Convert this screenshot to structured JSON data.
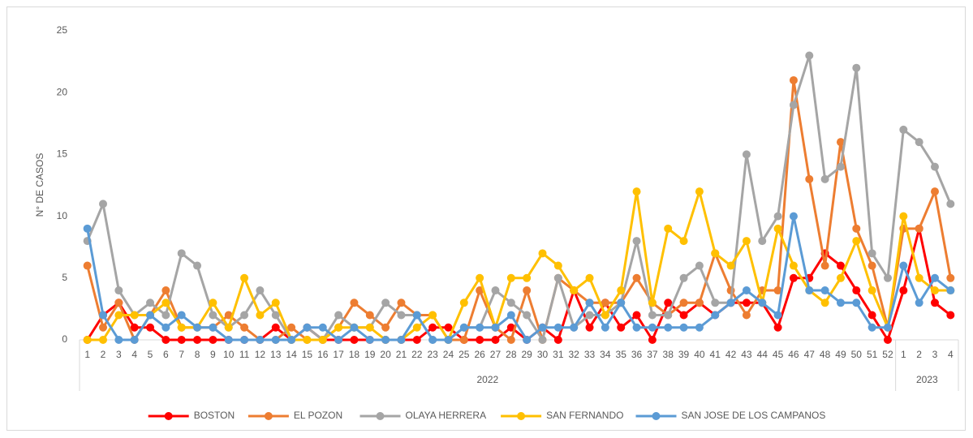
{
  "chart_data": {
    "type": "line",
    "y_label": "N° DE CASOS",
    "groups": [
      {
        "name": "2022",
        "categories": [
          1,
          2,
          3,
          4,
          5,
          6,
          7,
          8,
          9,
          10,
          11,
          12,
          13,
          14,
          15,
          16,
          17,
          18,
          19,
          20,
          21,
          22,
          23,
          24,
          25,
          26,
          27,
          28,
          29,
          30,
          31,
          32,
          33,
          34,
          35,
          36,
          37,
          38,
          39,
          40,
          41,
          42,
          43,
          44,
          45,
          46,
          47,
          48,
          49,
          50,
          51,
          52
        ]
      },
      {
        "name": "2023",
        "categories": [
          1,
          2,
          3,
          4
        ]
      }
    ],
    "ylim": [
      0,
      25
    ],
    "yticks": [
      0,
      5,
      10,
      15,
      20,
      25
    ],
    "legend": "bottom",
    "series": [
      {
        "name": "BOSTON",
        "color": "#ff0000",
        "values": [
          0,
          2,
          3,
          1,
          1,
          0,
          0,
          0,
          0,
          0,
          0,
          0,
          1,
          0,
          1,
          0,
          0,
          0,
          0,
          0,
          0,
          0,
          1,
          1,
          0,
          0,
          0,
          1,
          0,
          1,
          0,
          4,
          1,
          3,
          1,
          2,
          0,
          3,
          2,
          3,
          2,
          3,
          3,
          3,
          1,
          5,
          5,
          7,
          6,
          4,
          2,
          0,
          4,
          9,
          3,
          2
        ]
      },
      {
        "name": "EL POZON",
        "color": "#ed7d31",
        "values": [
          6,
          1,
          3,
          0,
          2,
          4,
          1,
          1,
          1,
          2,
          1,
          0,
          0,
          1,
          0,
          0,
          1,
          3,
          2,
          1,
          3,
          2,
          2,
          0,
          0,
          4,
          1,
          0,
          4,
          0,
          5,
          4,
          3,
          3,
          3,
          5,
          3,
          2,
          3,
          3,
          7,
          4,
          2,
          4,
          4,
          21,
          13,
          6,
          16,
          9,
          6,
          1,
          9,
          9,
          12,
          5
        ]
      },
      {
        "name": "OLAYA HERRERA",
        "color": "#a5a5a5",
        "values": [
          8,
          11,
          4,
          2,
          3,
          2,
          7,
          6,
          2,
          1,
          2,
          4,
          2,
          0,
          1,
          0,
          2,
          1,
          1,
          3,
          2,
          2,
          0,
          0,
          1,
          1,
          4,
          3,
          2,
          0,
          5,
          1,
          2,
          2,
          3,
          8,
          2,
          2,
          5,
          6,
          3,
          3,
          15,
          8,
          10,
          19,
          23,
          13,
          14,
          22,
          7,
          5,
          17,
          16,
          14,
          11
        ]
      },
      {
        "name": "SAN FERNANDO",
        "color": "#ffc000",
        "values": [
          0,
          0,
          2,
          2,
          2,
          3,
          1,
          1,
          3,
          1,
          5,
          2,
          3,
          0,
          0,
          0,
          1,
          1,
          1,
          0,
          0,
          1,
          2,
          0,
          3,
          5,
          1,
          5,
          5,
          7,
          6,
          4,
          5,
          2,
          4,
          12,
          3,
          9,
          8,
          12,
          7,
          6,
          8,
          3,
          9,
          6,
          4,
          3,
          5,
          8,
          4,
          1,
          10,
          5,
          4,
          4
        ]
      },
      {
        "name": "SAN JOSE DE LOS CAMPANOS",
        "color": "#5b9bd5",
        "values": [
          9,
          2,
          0,
          0,
          2,
          1,
          2,
          1,
          1,
          0,
          0,
          0,
          0,
          0,
          1,
          1,
          0,
          1,
          0,
          0,
          0,
          2,
          0,
          0,
          1,
          1,
          1,
          2,
          0,
          1,
          1,
          1,
          3,
          1,
          3,
          1,
          1,
          1,
          1,
          1,
          2,
          3,
          4,
          3,
          2,
          10,
          4,
          4,
          3,
          3,
          1,
          1,
          6,
          3,
          5,
          4
        ]
      }
    ]
  }
}
